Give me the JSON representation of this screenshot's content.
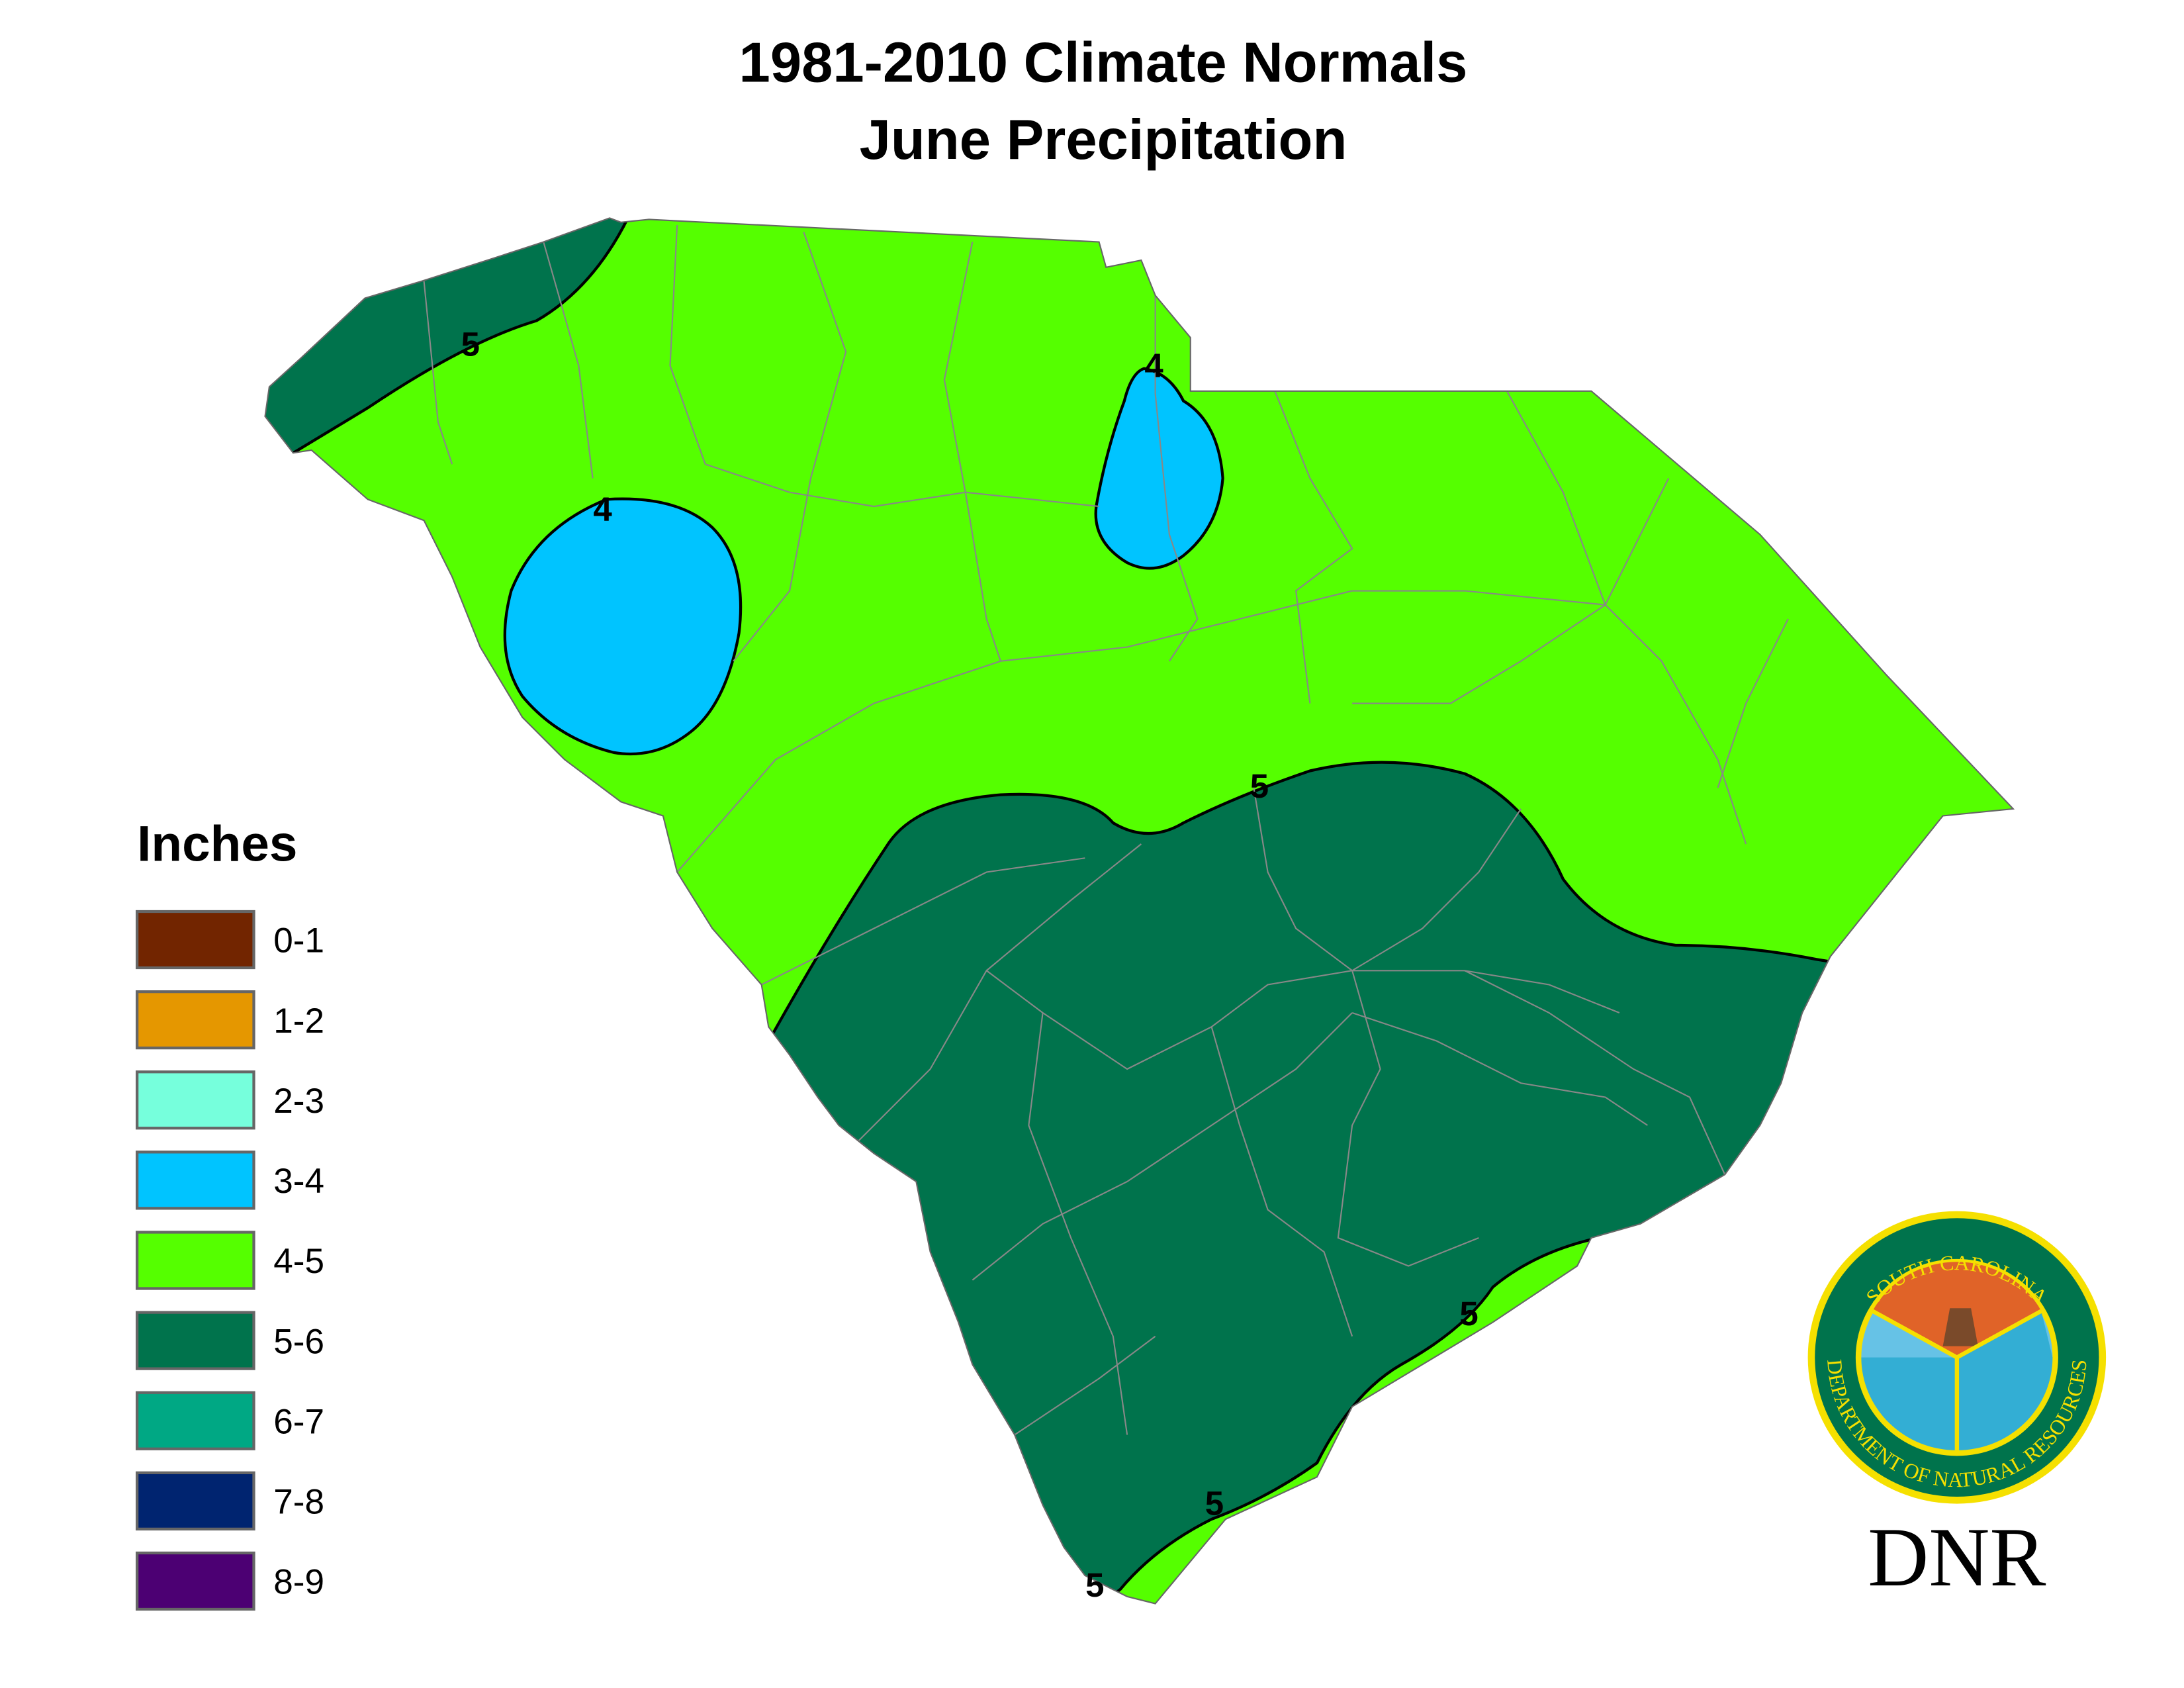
{
  "title_line1": "1981-2010 Climate Normals",
  "title_line2": "June Precipitation",
  "chart_data": {
    "type": "choropleth-map",
    "title": "1981-2010 Climate Normals June Precipitation",
    "region": "South Carolina",
    "legend": {
      "title": "Inches",
      "placement": "left",
      "bins": [
        {
          "label": "0-1",
          "color": "#722500"
        },
        {
          "label": "1-2",
          "color": "#e59700"
        },
        {
          "label": "2-3",
          "color": "#76ffdc"
        },
        {
          "label": "3-4",
          "color": "#00c4ff"
        },
        {
          "label": "4-5",
          "color": "#55ff00"
        },
        {
          "label": "5-6",
          "color": "#00734c"
        },
        {
          "label": "6-7",
          "color": "#00a884"
        },
        {
          "label": "7-8",
          "color": "#002470"
        },
        {
          "label": "8-9",
          "color": "#4c0073"
        }
      ]
    },
    "contour_labels": [
      "5",
      "4",
      "4",
      "5",
      "5",
      "5",
      "5"
    ],
    "zones": [
      {
        "range": "4-5",
        "area": "most of the state (Upstate, Midlands, Pee Dee, coastal strip)"
      },
      {
        "range": "5-6",
        "area": "northwest mountains and the southern/Lowcountry interior"
      },
      {
        "range": "3-4",
        "area": "two small pockets in the west and north-central areas"
      }
    ]
  },
  "logo": {
    "top_text": "SOUTH CAROLINA",
    "bottom_text": "DEPARTMENT OF NATURAL RESOURCES",
    "wordmark": "DNR"
  }
}
